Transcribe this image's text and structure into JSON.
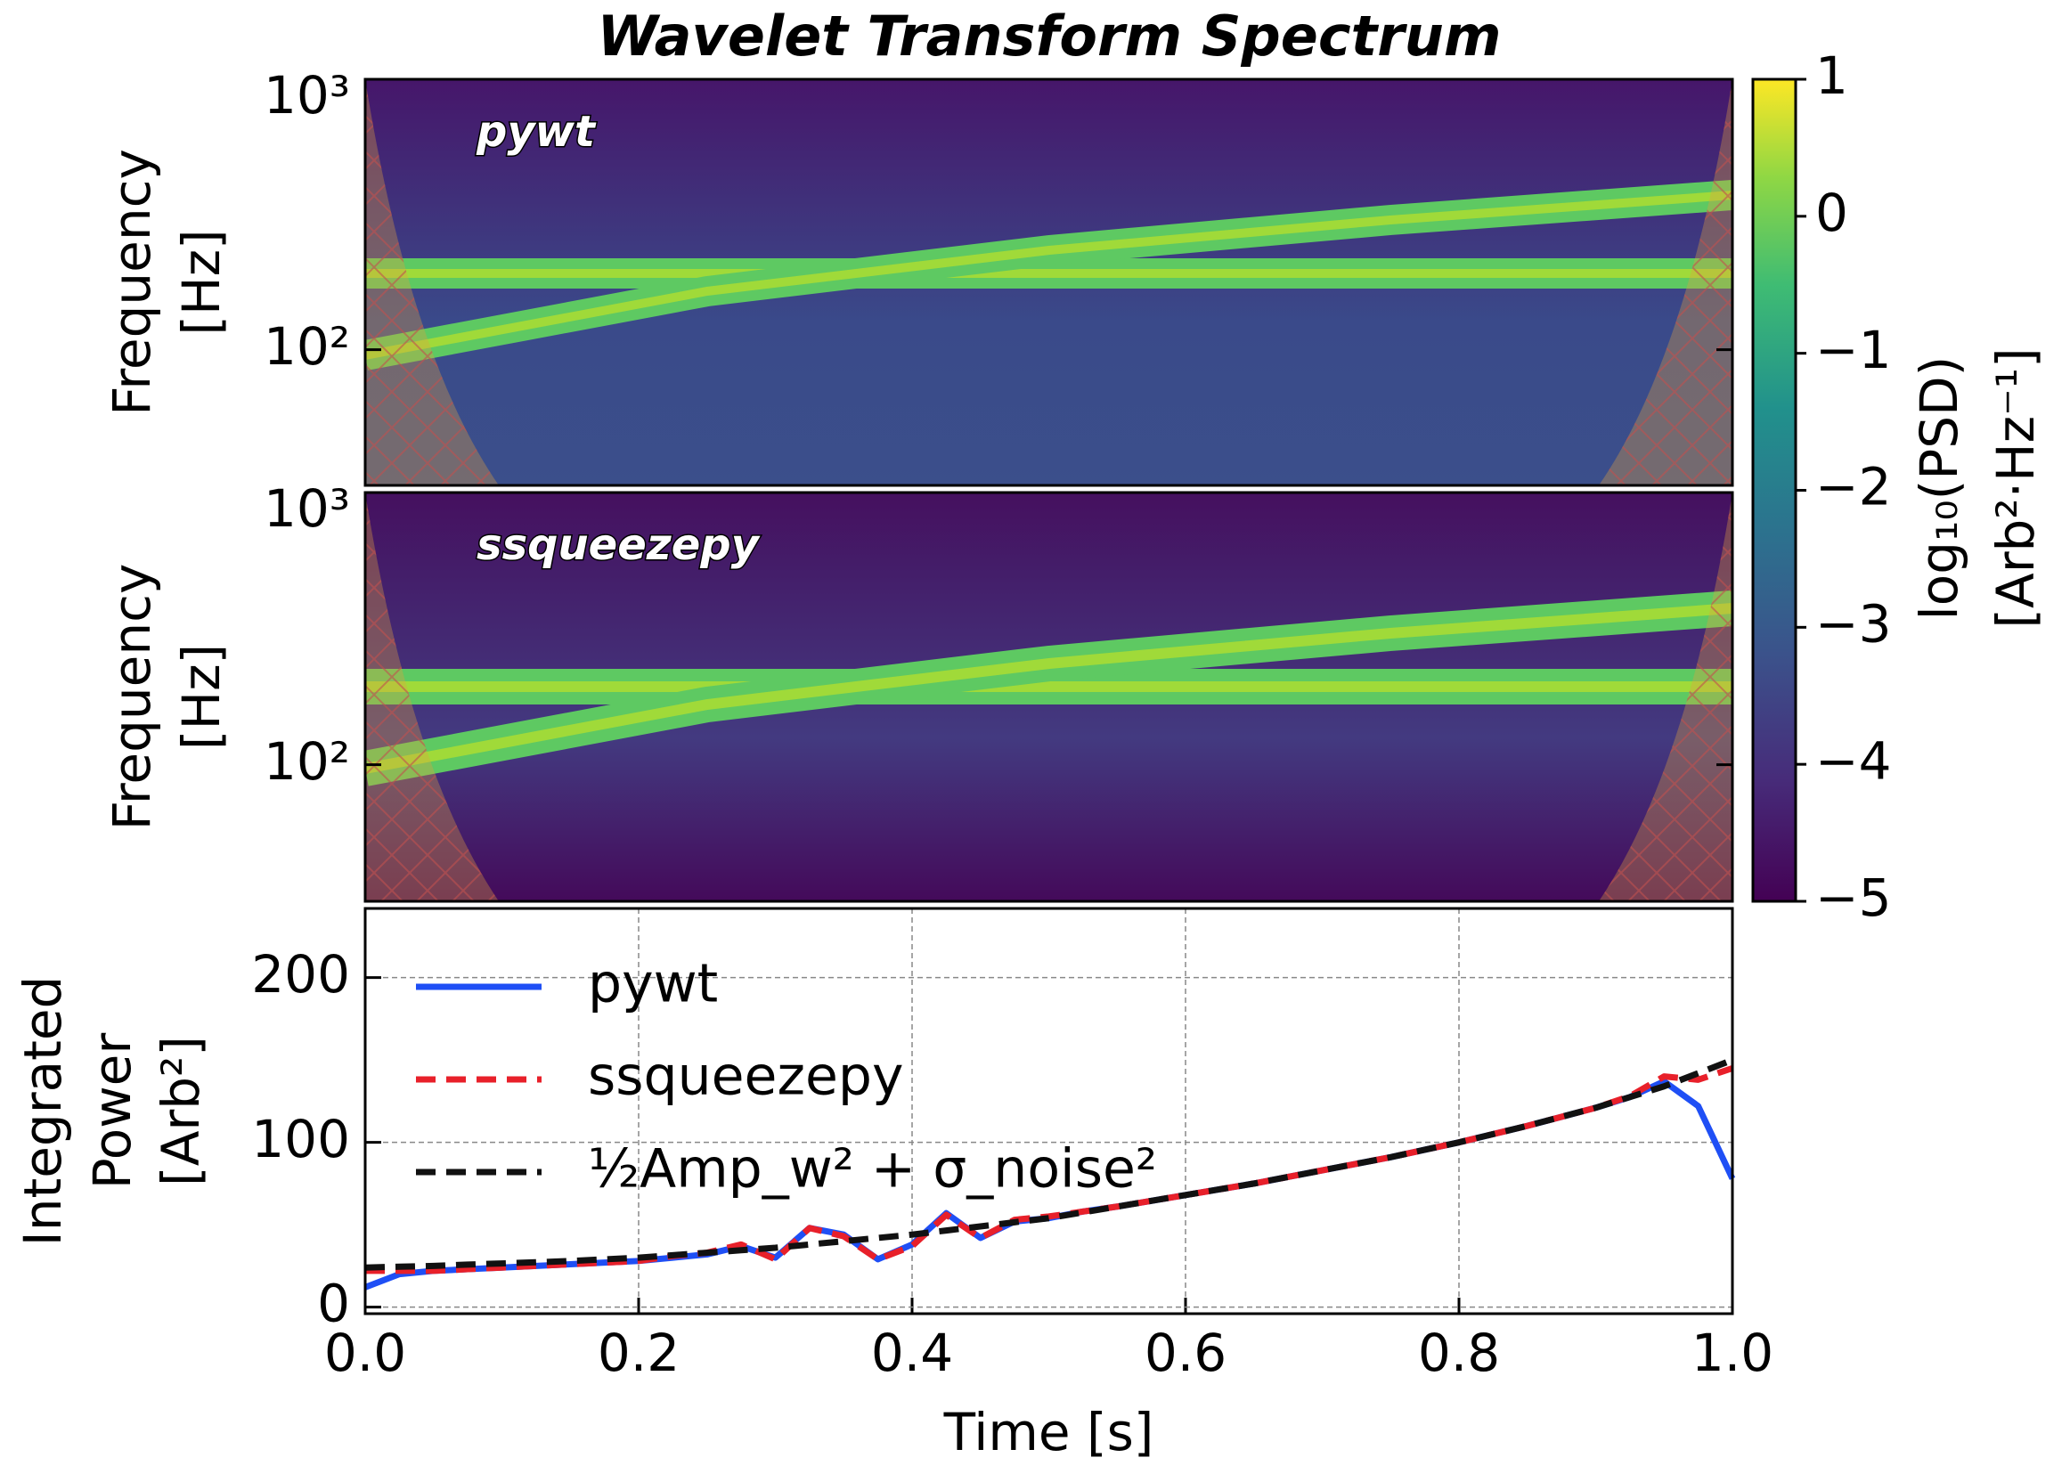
{
  "chart_data": [
    {
      "type": "heatmap",
      "title": "Wavelet Transform Spectrum",
      "annotation": "pywt",
      "ylabel": [
        "Frequency",
        "[Hz]"
      ],
      "log_y": true,
      "ylim": [
        31.5,
        1000
      ],
      "yticks": [
        {
          "value": 100,
          "label": "10²"
        },
        {
          "value": 1000,
          "label": "10³"
        }
      ],
      "colorbar": {
        "label": [
          "log₁₀(PSD)",
          "[Arb²·Hz⁻¹]"
        ],
        "colormap": "viridis",
        "clim": [
          -5,
          1
        ],
        "ticks": [
          1,
          0,
          {
            "value": -1,
            "label": "−1"
          },
          {
            "value": -2,
            "label": "−2"
          },
          {
            "value": -3,
            "label": "−3"
          },
          {
            "value": -4,
            "label": "−4"
          },
          {
            "value": -5,
            "label": "−5"
          }
        ]
      }
    },
    {
      "type": "heatmap",
      "annotation": "ssqueezepy",
      "ylabel": [
        "Frequency",
        "[Hz]"
      ],
      "log_y": true,
      "ylim": [
        31.5,
        1000
      ],
      "yticks": [
        {
          "value": 100,
          "label": "10²"
        },
        {
          "value": 1000,
          "label": "10³"
        }
      ]
    },
    {
      "type": "line",
      "xlabel": "Time [s]",
      "ylabel": [
        "Integrated",
        "Power",
        "[Arb²]"
      ],
      "xlim": [
        0,
        1
      ],
      "ylim": [
        -4,
        242
      ],
      "grid": true,
      "legend": "upper left",
      "xticks": [
        {
          "value": 0,
          "label": "0.0"
        },
        0.2,
        0.4,
        0.6,
        0.8,
        {
          "value": 1,
          "label": "1.0"
        }
      ],
      "yticks": [
        0,
        100,
        200
      ],
      "x": [
        0,
        0.025,
        0.05,
        0.075,
        0.1,
        0.125,
        0.15,
        0.175,
        0.2,
        0.225,
        0.25,
        0.275,
        0.3,
        0.325,
        0.35,
        0.375,
        0.4,
        0.425,
        0.45,
        0.475,
        0.5,
        0.525,
        0.55,
        0.575,
        0.6,
        0.625,
        0.65,
        0.675,
        0.7,
        0.725,
        0.75,
        0.775,
        0.8,
        0.825,
        0.85,
        0.875,
        0.9,
        0.925,
        0.95,
        0.975,
        1
      ],
      "series": [
        {
          "name": "pywt",
          "color": "#1f4ff5",
          "dash": false,
          "values": [
            12,
            20,
            22,
            23,
            24,
            25,
            26,
            27,
            28,
            30,
            32,
            37,
            30,
            48,
            44,
            29,
            38,
            57,
            42,
            52,
            54,
            58,
            61,
            64.5,
            68,
            71.5,
            75,
            79,
            83,
            87,
            91,
            95.5,
            100,
            105,
            110,
            115.5,
            121,
            127.5,
            137,
            122,
            78
          ]
        },
        {
          "name": "ssqueezepy",
          "color": "#e8202a",
          "dash": true,
          "values": [
            22,
            22,
            22,
            23,
            24,
            25,
            26,
            27,
            28,
            31,
            33,
            38,
            29,
            48,
            43,
            29,
            37,
            56,
            42,
            53,
            55,
            58,
            61,
            64.5,
            68,
            71.5,
            75,
            79,
            83,
            87,
            91,
            95.5,
            100,
            105,
            110,
            115.5,
            121,
            128,
            140,
            138,
            145
          ]
        },
        {
          "name": "½Amp_w² + σ_noise²",
          "color": "#111111",
          "dash": true,
          "values": [
            24,
            24.5,
            25,
            25.8,
            26.5,
            27.2,
            28,
            29,
            30,
            31.5,
            33,
            34.5,
            36,
            38,
            40,
            42,
            44,
            46.5,
            49,
            51.5,
            54,
            57.5,
            61,
            64.5,
            68,
            71.5,
            75,
            79,
            83,
            87,
            91,
            95.5,
            100,
            105,
            110,
            115.5,
            121,
            127.5,
            134,
            142,
            150
          ]
        }
      ]
    }
  ]
}
